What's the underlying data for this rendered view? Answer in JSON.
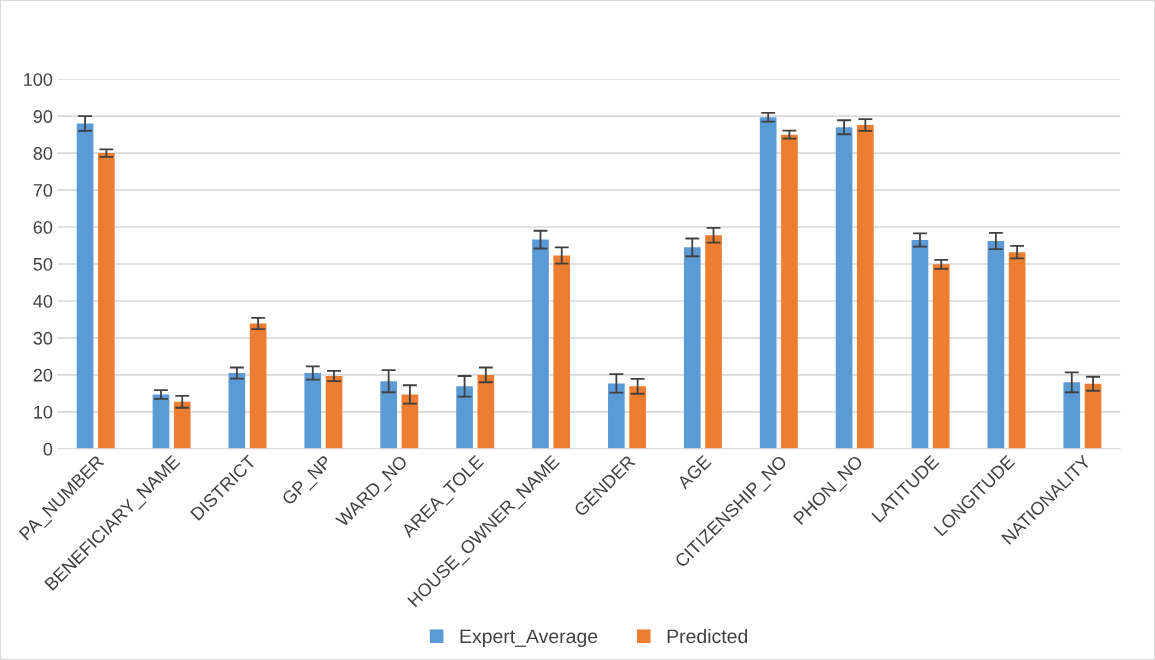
{
  "chart_data": {
    "type": "bar",
    "categories": [
      "PA_NUMBER",
      "BENEFICIARY_NAME",
      "DISTRICT",
      "GP_NP",
      "WARD_NO",
      "AREA_TOLE",
      "HOUSE_OWNER_NAME",
      "GENDER",
      "AGE",
      "CITIZENSHIP_NO",
      "PHON_NO",
      "LATITUDE",
      "LONGITUDE",
      "NATIONALITY"
    ],
    "series": [
      {
        "name": "Expert_Average",
        "color": "#5b9bd5",
        "values": [
          88.0,
          14.7,
          20.5,
          20.5,
          18.3,
          16.9,
          56.6,
          17.7,
          54.5,
          89.7,
          87.0,
          56.5,
          56.2,
          18.0
        ],
        "errors": [
          2,
          1.2,
          1.5,
          1.8,
          3,
          2.8,
          2.4,
          2.5,
          2.4,
          1.2,
          1.9,
          1.8,
          2.2,
          2.7
        ]
      },
      {
        "name": "Predicted",
        "color": "#ed7d31",
        "values": [
          80.0,
          12.7,
          33.9,
          19.7,
          14.7,
          20.0,
          52.3,
          16.9,
          57.8,
          85.0,
          87.6,
          49.9,
          53.2,
          17.6
        ],
        "errors": [
          1,
          1.6,
          1.5,
          1.4,
          2.5,
          2,
          2.2,
          2,
          2,
          1.1,
          1.6,
          1.2,
          1.7,
          1.9
        ]
      }
    ],
    "ylim": [
      0,
      100
    ],
    "yticks": [
      0,
      10,
      20,
      30,
      40,
      50,
      60,
      70,
      80,
      90,
      100
    ],
    "grid": "y",
    "legend": "bottom"
  }
}
